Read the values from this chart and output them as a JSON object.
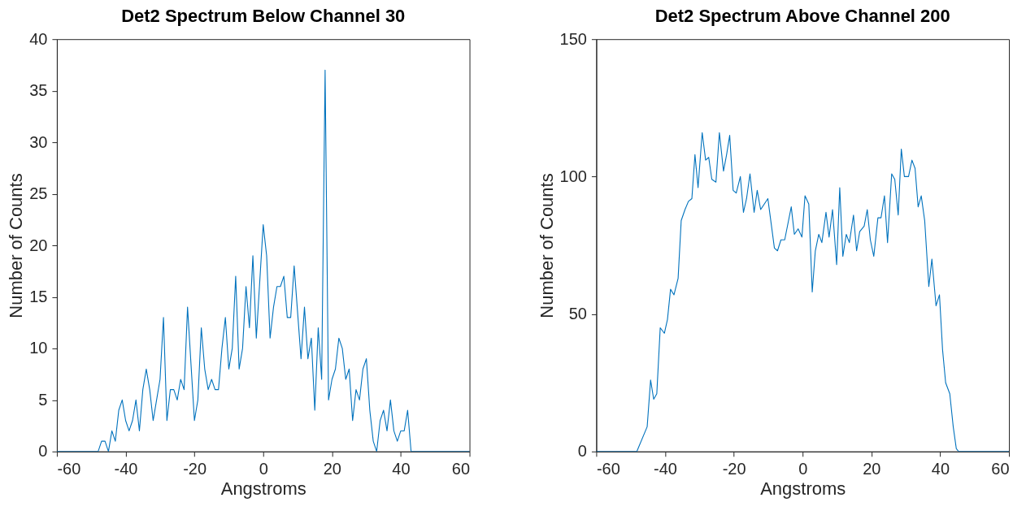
{
  "chart_data": [
    {
      "type": "line",
      "title": "Det2 Spectrum Below Channel 30",
      "xlabel": "Angstroms",
      "ylabel": "Number of Counts",
      "xlim": [
        -60,
        60
      ],
      "ylim": [
        0,
        40
      ],
      "xticks": [
        -60,
        -40,
        -20,
        0,
        20,
        40,
        60
      ],
      "yticks": [
        0,
        5,
        10,
        15,
        20,
        25,
        30,
        35,
        40
      ],
      "grid": false,
      "x": [
        -60,
        -48,
        -47,
        -46,
        -45,
        -44,
        -43,
        -42,
        -41,
        -40,
        -39,
        -38,
        -37,
        -36,
        -35,
        -34,
        -33,
        -32,
        -31,
        -30,
        -29,
        -28,
        -27,
        -26,
        -25,
        -24,
        -23,
        -22,
        -20,
        -19,
        -18,
        -17,
        -16,
        -15,
        -14,
        -13,
        -12,
        -11,
        -10,
        -9,
        -8,
        -7,
        -6,
        -5,
        -4,
        -3,
        -2,
        0,
        1,
        2,
        3,
        4,
        5,
        6,
        7,
        8,
        9,
        11,
        12,
        13,
        14,
        15,
        16,
        17,
        18,
        19,
        20,
        21,
        22,
        23,
        24,
        25,
        26,
        27,
        28,
        29,
        30,
        31,
        32,
        33,
        34,
        35,
        36,
        37,
        38,
        39,
        40,
        41,
        42,
        43,
        60
      ],
      "series": [
        {
          "color": "#0072bd",
          "values": [
            0,
            0,
            1,
            1,
            0,
            2,
            1,
            4,
            5,
            3,
            2,
            3,
            5,
            2,
            6,
            8,
            6,
            3,
            5,
            7,
            13,
            3,
            6,
            6,
            5,
            7,
            6,
            14,
            3,
            5,
            12,
            8,
            6,
            7,
            6,
            6,
            10,
            13,
            8,
            10,
            17,
            8,
            10,
            16,
            12,
            19,
            11,
            22,
            19,
            11,
            14,
            16,
            16,
            17,
            13,
            13,
            18,
            9,
            14,
            9,
            11,
            4,
            12,
            7,
            37,
            5,
            7,
            8,
            11,
            10,
            7,
            8,
            3,
            6,
            5,
            8,
            9,
            4,
            1,
            0,
            3,
            4,
            2,
            5,
            2,
            1,
            2,
            2,
            4,
            0,
            0
          ]
        }
      ]
    },
    {
      "type": "line",
      "title": "Det2 Spectrum Above Channel 200",
      "xlabel": "Angstroms",
      "ylabel": "Number of Counts",
      "xlim": [
        -60,
        60
      ],
      "ylim": [
        0,
        150
      ],
      "xticks": [
        -60,
        -40,
        -20,
        0,
        20,
        40,
        60
      ],
      "yticks": [
        0,
        50,
        100,
        150
      ],
      "grid": false,
      "x": [
        -60,
        -48.2,
        -45.2,
        -44.2,
        -43.3,
        -42.4,
        -41.4,
        -40.2,
        -39.3,
        -38.4,
        -37.4,
        -36.2,
        -35.3,
        -34.2,
        -33.2,
        -32.2,
        -31.3,
        -30.4,
        -29.2,
        -28.2,
        -27.3,
        -26.4,
        -25.2,
        -24.2,
        -23,
        -22.1,
        -21.2,
        -20.2,
        -19.3,
        -18.1,
        -17.2,
        -16.3,
        -15.3,
        -14.1,
        -13.2,
        -12.2,
        -10.1,
        -8.2,
        -7.3,
        -6.3,
        -5.2,
        -3.3,
        -2.4,
        -1.3,
        -0.2,
        0.7,
        1.8,
        2.8,
        3.7,
        4.7,
        5.6,
        6.8,
        7.7,
        8.7,
        9.9,
        10.8,
        11.7,
        12.7,
        13.6,
        14.8,
        15.7,
        16.6,
        17.9,
        18.8,
        19.7,
        20.7,
        21.9,
        22.8,
        23.8,
        24.7,
        25.9,
        26.8,
        27.8,
        28.7,
        29.6,
        30.8,
        31.8,
        32.7,
        33.6,
        34.5,
        35.5,
        36.7,
        37.6,
        38.8,
        39.8,
        40.7,
        41.6,
        42.8,
        43.8,
        44.7,
        45.4,
        60
      ],
      "series": [
        {
          "color": "#0072bd",
          "values": [
            0,
            0,
            9,
            26,
            19,
            21,
            45,
            43,
            48,
            59,
            57,
            63,
            84,
            88,
            91,
            92,
            108,
            96,
            116,
            106,
            107,
            99,
            98,
            116,
            102,
            108,
            115,
            95,
            94,
            100,
            87,
            92,
            101,
            87,
            95,
            88,
            92,
            74,
            73,
            77,
            77,
            89,
            79,
            81,
            78,
            93,
            90,
            58,
            73,
            79,
            76,
            87,
            78,
            88,
            68,
            96,
            71,
            79,
            76,
            86,
            73,
            80,
            82,
            88,
            77,
            71,
            85,
            85,
            93,
            76,
            101,
            99,
            86,
            110,
            100,
            100,
            106,
            103,
            89,
            93,
            84,
            60,
            70,
            53,
            57,
            37,
            25,
            21,
            9,
            1,
            0,
            0
          ]
        }
      ]
    }
  ]
}
